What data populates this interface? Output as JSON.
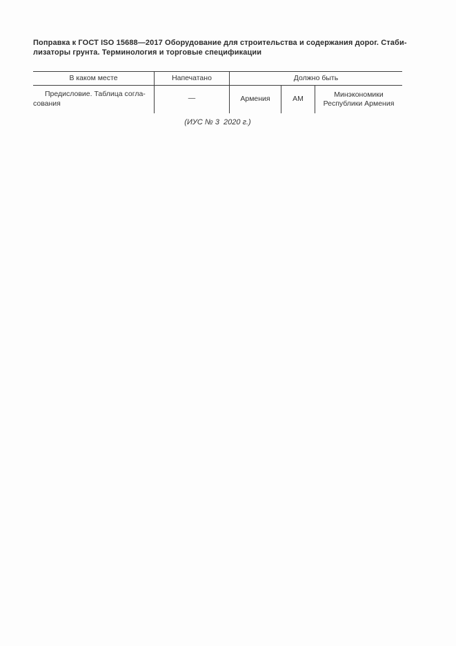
{
  "page": {
    "title": "Поправка к ГОСТ ISO 15688—2017 Оборудование для строительства и содержания дорог. Стаби-\nлизаторы грунта. Терминология и торговые спецификации",
    "caption": "(ИУС № 3  2020 г.)"
  },
  "table": {
    "headers": [
      "В каком месте",
      "Напечатано",
      "Должно быть"
    ],
    "row": {
      "location": "Предисловие. Таблица согла-\nсования",
      "printed": "—",
      "should_be": [
        "Армения",
        "AM",
        "Минэкономики\nРеспублики Армения"
      ]
    }
  }
}
